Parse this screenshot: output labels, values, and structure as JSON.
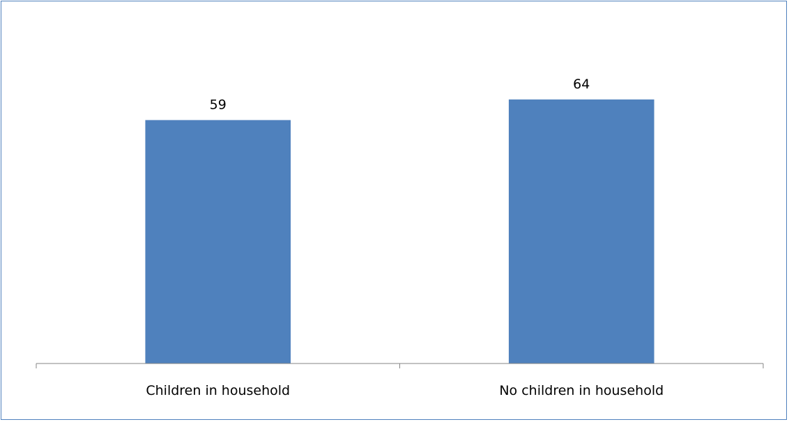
{
  "chart_data": {
    "type": "bar",
    "categories": [
      "Children in household",
      "No children in household"
    ],
    "values": [
      59,
      64
    ],
    "data_labels": [
      "59",
      "64"
    ],
    "title": "",
    "xlabel": "",
    "ylabel": "",
    "ylim": [
      0,
      80
    ],
    "grid": false,
    "legend": "none",
    "bar_color": "#4f81bd",
    "frame_color": "#4f81bd",
    "axis_color": "#868686"
  }
}
